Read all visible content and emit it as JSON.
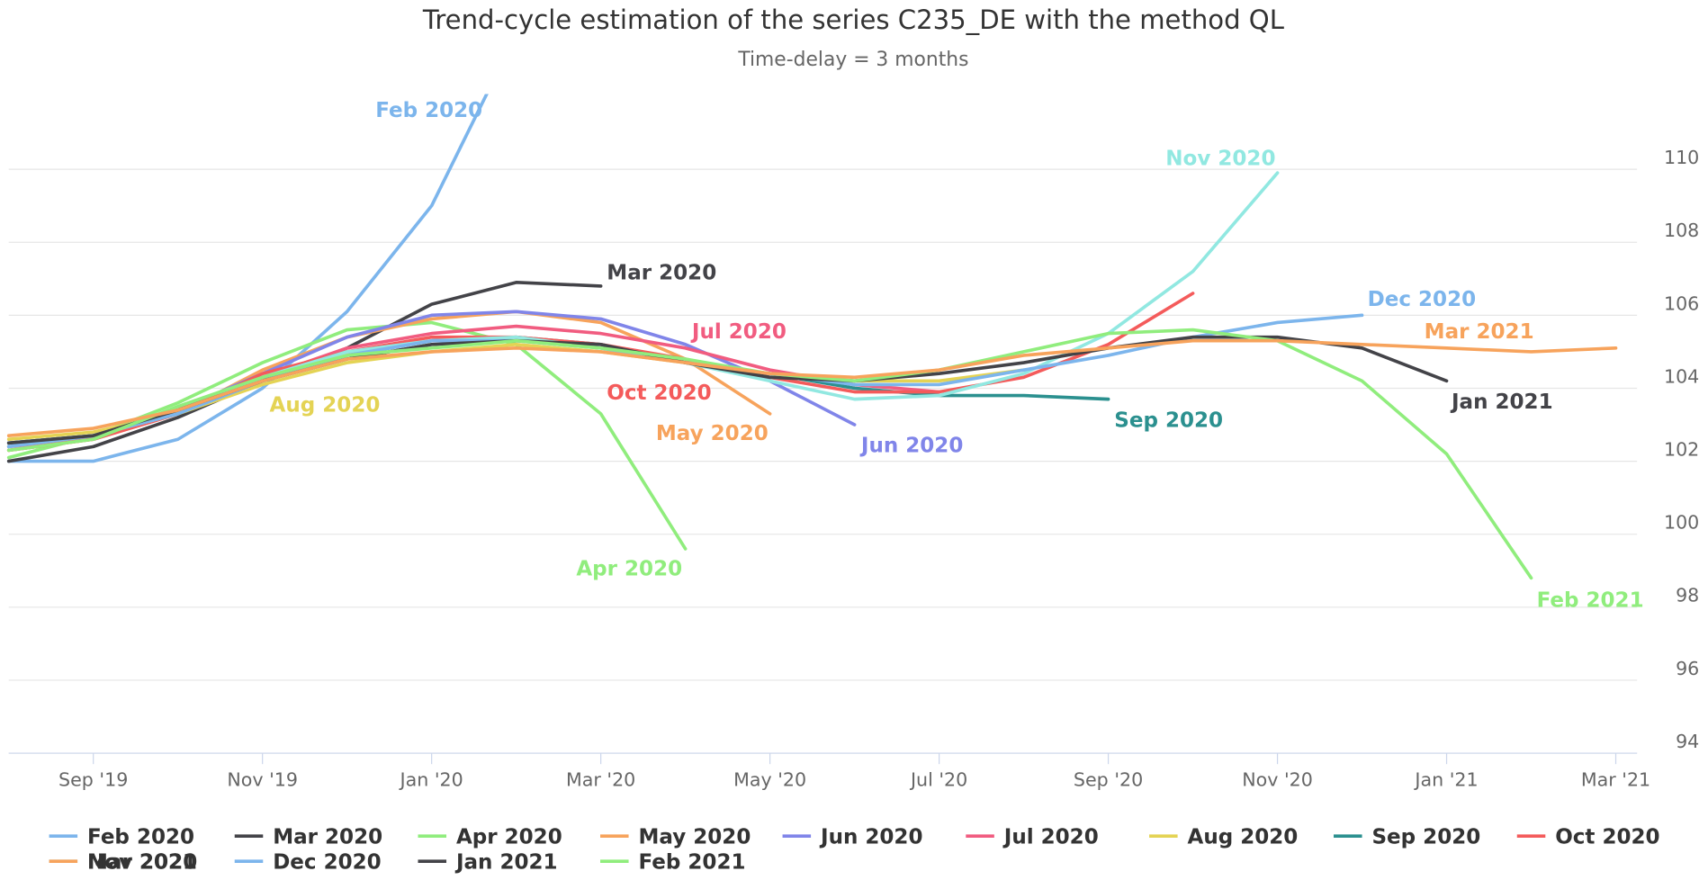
{
  "chart_data": {
    "type": "line",
    "title": "Trend-cycle estimation of the series C235_DE with the method QL",
    "subtitle": "Time-delay = 3 months",
    "categories": [
      null,
      "Sep '19",
      null,
      "Nov '19",
      null,
      "Jan '20",
      null,
      "Mar '20",
      null,
      "May '20",
      null,
      "Jul '20",
      null,
      "Sep '20",
      null,
      "Nov '20",
      null,
      "Jan '21",
      null,
      "Mar '21"
    ],
    "ylim": [
      94,
      112
    ],
    "yticks": [
      94,
      96,
      98,
      100,
      102,
      104,
      106,
      108,
      110
    ],
    "grid": true,
    "legend": "bottom",
    "series": [
      {
        "name": "Feb 2020",
        "color": "#7cb5ec",
        "values": [
          102.0,
          102.0,
          102.6,
          104.0,
          106.1,
          109.0,
          113.7,
          null,
          null,
          null,
          null,
          null,
          null,
          null,
          null,
          null,
          null,
          null,
          null,
          null
        ]
      },
      {
        "name": "Mar 2020",
        "color": "#434348",
        "values": [
          102.0,
          102.4,
          103.2,
          104.2,
          105.1,
          106.3,
          106.9,
          106.8,
          null,
          null,
          null,
          null,
          null,
          null,
          null,
          null,
          null,
          null,
          null,
          null
        ]
      },
      {
        "name": "Apr 2020",
        "color": "#90ed7d",
        "values": [
          102.1,
          102.7,
          103.6,
          104.7,
          105.6,
          105.8,
          105.2,
          103.3,
          99.6,
          null,
          null,
          null,
          null,
          null,
          null,
          null,
          null,
          null,
          null,
          null
        ]
      },
      {
        "name": "May 2020",
        "color": "#f7a35c",
        "values": [
          102.3,
          102.6,
          103.3,
          104.5,
          105.4,
          105.9,
          106.1,
          105.8,
          104.8,
          103.3,
          null,
          null,
          null,
          null,
          null,
          null,
          null,
          null,
          null,
          null
        ]
      },
      {
        "name": "Jun 2020",
        "color": "#8085e9",
        "values": [
          102.5,
          102.7,
          103.4,
          104.4,
          105.4,
          106.0,
          106.1,
          105.9,
          105.2,
          104.2,
          103.0,
          null,
          null,
          null,
          null,
          null,
          null,
          null,
          null,
          null
        ]
      },
      {
        "name": "Jul 2020",
        "color": "#f15c80",
        "values": [
          102.4,
          102.6,
          103.4,
          104.3,
          105.1,
          105.5,
          105.7,
          105.5,
          105.1,
          104.5,
          104.1,
          103.9,
          null,
          null,
          null,
          null,
          null,
          null,
          null,
          null
        ]
      },
      {
        "name": "Aug 2020",
        "color": "#e4d354",
        "values": [
          102.6,
          102.8,
          103.3,
          104.1,
          104.7,
          105.0,
          105.2,
          105.0,
          104.7,
          104.4,
          104.2,
          104.2,
          104.5,
          null,
          null,
          null,
          null,
          null,
          null,
          null
        ]
      },
      {
        "name": "Sep 2020",
        "color": "#2b908f",
        "values": [
          102.5,
          102.7,
          103.4,
          104.2,
          104.9,
          105.3,
          105.4,
          105.2,
          104.7,
          104.4,
          104.0,
          103.8,
          103.8,
          103.7,
          null,
          null,
          null,
          null,
          null,
          null
        ]
      },
      {
        "name": "Oct 2020",
        "color": "#f45b5b",
        "values": [
          102.3,
          102.6,
          103.3,
          104.4,
          105.0,
          105.4,
          105.4,
          105.2,
          104.8,
          104.3,
          103.9,
          103.9,
          104.3,
          105.2,
          106.6,
          null,
          null,
          null,
          null,
          null
        ]
      },
      {
        "name": "Nov 2020",
        "color": "#91e8e1",
        "values": [
          102.4,
          102.7,
          103.3,
          104.3,
          105.0,
          105.3,
          105.4,
          105.1,
          104.7,
          104.2,
          103.7,
          103.8,
          104.4,
          105.5,
          107.2,
          109.9,
          null,
          null,
          null,
          null
        ]
      },
      {
        "name": "Dec 2020",
        "color": "#7cb5ec",
        "values": [
          102.4,
          102.7,
          103.3,
          104.2,
          104.9,
          105.3,
          105.3,
          105.1,
          104.7,
          104.4,
          104.1,
          104.1,
          104.5,
          104.9,
          105.4,
          105.8,
          106.0,
          null,
          null,
          null
        ]
      },
      {
        "name": "Jan 2021",
        "color": "#434348",
        "values": [
          102.5,
          102.7,
          103.4,
          104.2,
          104.8,
          105.2,
          105.3,
          105.2,
          104.7,
          104.3,
          104.2,
          104.4,
          104.7,
          105.1,
          105.4,
          105.4,
          105.1,
          104.2,
          null,
          null
        ]
      },
      {
        "name": "Feb 2021",
        "color": "#90ed7d",
        "values": [
          102.3,
          102.6,
          103.5,
          104.3,
          104.9,
          105.1,
          105.3,
          105.1,
          104.8,
          104.4,
          104.2,
          104.5,
          105.0,
          105.5,
          105.6,
          105.3,
          104.2,
          102.2,
          98.8,
          null
        ]
      },
      {
        "name": "Mar 2021",
        "color": "#f7a35c",
        "values": [
          102.7,
          102.9,
          103.4,
          104.2,
          104.8,
          105.0,
          105.1,
          105.0,
          104.7,
          104.4,
          104.3,
          104.5,
          104.9,
          105.1,
          105.3,
          105.3,
          105.2,
          105.1,
          105.0,
          105.1
        ]
      }
    ]
  }
}
